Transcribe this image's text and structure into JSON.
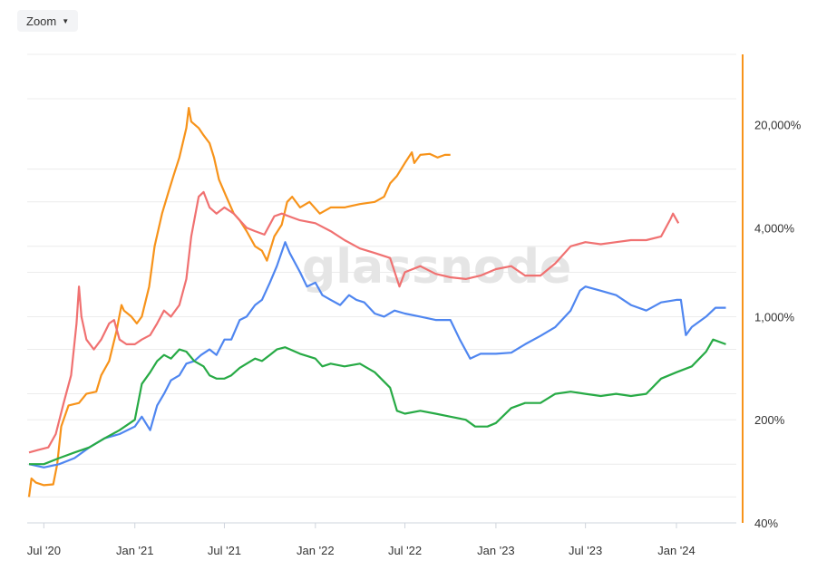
{
  "toolbar": {
    "zoom_label": "Zoom",
    "zoom_icon": "caret-down-icon"
  },
  "watermark": "glassnode",
  "colors": {
    "orange": "#f7931a",
    "red": "#f07171",
    "blue": "#4f86f0",
    "green": "#27aa45",
    "axis": "#f7931a",
    "grid": "#ececec"
  },
  "chart_data": {
    "type": "line",
    "y_scale": "log",
    "ylim": [
      40,
      60000
    ],
    "xlim": [
      "2020-06-01",
      "2024-05-01"
    ],
    "x_ticks": [
      {
        "label": "Jul '20",
        "date": "2020-07-01"
      },
      {
        "label": "Jan '21",
        "date": "2021-01-01"
      },
      {
        "label": "Jul '21",
        "date": "2021-07-01"
      },
      {
        "label": "Jan '22",
        "date": "2022-01-01"
      },
      {
        "label": "Jul '22",
        "date": "2022-07-01"
      },
      {
        "label": "Jan '23",
        "date": "2023-01-01"
      },
      {
        "label": "Jul '23",
        "date": "2023-07-01"
      },
      {
        "label": "Jan '24",
        "date": "2024-01-01"
      }
    ],
    "y_ticks": [
      {
        "label": "40%",
        "value": 40
      },
      {
        "label": "200%",
        "value": 200
      },
      {
        "label": "1,000%",
        "value": 1000
      },
      {
        "label": "4,000%",
        "value": 4000
      },
      {
        "label": "20,000%",
        "value": 20000
      }
    ],
    "grid_values": [
      60,
      100,
      200,
      300,
      600,
      1000,
      2000,
      3000,
      6000,
      10000,
      30000,
      60000
    ],
    "grid": true,
    "series": [
      {
        "color": "#f7931a",
        "points": [
          [
            "2020-06-01",
            60
          ],
          [
            "2020-06-06",
            80
          ],
          [
            "2020-06-15",
            75
          ],
          [
            "2020-07-01",
            72
          ],
          [
            "2020-07-20",
            73
          ],
          [
            "2020-07-28",
            100
          ],
          [
            "2020-08-05",
            180
          ],
          [
            "2020-08-20",
            250
          ],
          [
            "2020-09-10",
            260
          ],
          [
            "2020-09-25",
            300
          ],
          [
            "2020-10-15",
            310
          ],
          [
            "2020-10-25",
            400
          ],
          [
            "2020-11-10",
            500
          ],
          [
            "2020-11-25",
            800
          ],
          [
            "2020-12-05",
            1200
          ],
          [
            "2020-12-10",
            1100
          ],
          [
            "2020-12-25",
            1000
          ],
          [
            "2021-01-05",
            900
          ],
          [
            "2021-01-15",
            1000
          ],
          [
            "2021-01-30",
            1600
          ],
          [
            "2021-02-10",
            3000
          ],
          [
            "2021-02-25",
            5000
          ],
          [
            "2021-03-10",
            7000
          ],
          [
            "2021-03-20",
            9000
          ],
          [
            "2021-04-01",
            12000
          ],
          [
            "2021-04-15",
            19000
          ],
          [
            "2021-04-20",
            26000
          ],
          [
            "2021-04-25",
            21000
          ],
          [
            "2021-05-10",
            19000
          ],
          [
            "2021-05-20",
            17000
          ],
          [
            "2021-06-01",
            15000
          ],
          [
            "2021-06-10",
            12000
          ],
          [
            "2021-06-20",
            8500
          ],
          [
            "2021-07-05",
            6500
          ],
          [
            "2021-07-20",
            5000
          ],
          [
            "2021-08-01",
            4500
          ],
          [
            "2021-08-15",
            3800
          ],
          [
            "2021-09-01",
            3000
          ],
          [
            "2021-09-15",
            2800
          ],
          [
            "2021-09-25",
            2400
          ],
          [
            "2021-10-10",
            3500
          ],
          [
            "2021-10-25",
            4200
          ],
          [
            "2021-11-05",
            6000
          ],
          [
            "2021-11-15",
            6500
          ],
          [
            "2021-12-01",
            5500
          ],
          [
            "2021-12-20",
            6000
          ],
          [
            "2022-01-10",
            5000
          ],
          [
            "2022-02-01",
            5500
          ],
          [
            "2022-03-01",
            5500
          ],
          [
            "2022-04-01",
            5800
          ],
          [
            "2022-05-01",
            6000
          ],
          [
            "2022-05-20",
            6500
          ],
          [
            "2022-06-01",
            8000
          ],
          [
            "2022-06-15",
            9000
          ],
          [
            "2022-07-01",
            11000
          ],
          [
            "2022-07-15",
            13000
          ],
          [
            "2022-07-20",
            11000
          ],
          [
            "2022-08-01",
            12500
          ],
          [
            "2022-08-20",
            12700
          ],
          [
            "2022-09-05",
            12000
          ],
          [
            "2022-09-20",
            12500
          ],
          [
            "2022-10-01",
            12500
          ]
        ]
      },
      {
        "color": "#f07171",
        "points": [
          [
            "2020-06-01",
            120
          ],
          [
            "2020-06-20",
            125
          ],
          [
            "2020-07-10",
            130
          ],
          [
            "2020-07-25",
            160
          ],
          [
            "2020-08-10",
            260
          ],
          [
            "2020-08-25",
            400
          ],
          [
            "2020-09-05",
            900
          ],
          [
            "2020-09-10",
            1600
          ],
          [
            "2020-09-15",
            1000
          ],
          [
            "2020-09-25",
            700
          ],
          [
            "2020-10-10",
            600
          ],
          [
            "2020-10-25",
            700
          ],
          [
            "2020-11-10",
            900
          ],
          [
            "2020-11-20",
            950
          ],
          [
            "2020-12-01",
            700
          ],
          [
            "2020-12-15",
            650
          ],
          [
            "2021-01-01",
            650
          ],
          [
            "2021-01-15",
            700
          ],
          [
            "2021-02-01",
            750
          ],
          [
            "2021-02-15",
            900
          ],
          [
            "2021-03-01",
            1100
          ],
          [
            "2021-03-15",
            1000
          ],
          [
            "2021-04-01",
            1200
          ],
          [
            "2021-04-15",
            1800
          ],
          [
            "2021-04-25",
            3500
          ],
          [
            "2021-05-10",
            6500
          ],
          [
            "2021-05-20",
            7000
          ],
          [
            "2021-06-01",
            5500
          ],
          [
            "2021-06-15",
            5000
          ],
          [
            "2021-07-01",
            5500
          ],
          [
            "2021-07-20",
            5000
          ],
          [
            "2021-08-01",
            4500
          ],
          [
            "2021-08-15",
            4000
          ],
          [
            "2021-09-01",
            3800
          ],
          [
            "2021-09-20",
            3600
          ],
          [
            "2021-10-10",
            4800
          ],
          [
            "2021-10-25",
            5000
          ],
          [
            "2021-11-15",
            4700
          ],
          [
            "2021-12-01",
            4500
          ],
          [
            "2022-01-01",
            4300
          ],
          [
            "2022-02-01",
            3800
          ],
          [
            "2022-03-01",
            3300
          ],
          [
            "2022-04-01",
            2900
          ],
          [
            "2022-05-01",
            2700
          ],
          [
            "2022-06-01",
            2500
          ],
          [
            "2022-06-20",
            1600
          ],
          [
            "2022-07-01",
            2000
          ],
          [
            "2022-08-01",
            2200
          ],
          [
            "2022-09-01",
            1950
          ],
          [
            "2022-10-01",
            1850
          ],
          [
            "2022-11-01",
            1800
          ],
          [
            "2022-12-01",
            1900
          ],
          [
            "2023-01-01",
            2100
          ],
          [
            "2023-02-01",
            2200
          ],
          [
            "2023-03-01",
            1900
          ],
          [
            "2023-04-01",
            1900
          ],
          [
            "2023-05-01",
            2300
          ],
          [
            "2023-06-01",
            3000
          ],
          [
            "2023-07-01",
            3200
          ],
          [
            "2023-08-01",
            3100
          ],
          [
            "2023-09-01",
            3200
          ],
          [
            "2023-10-01",
            3300
          ],
          [
            "2023-11-01",
            3300
          ],
          [
            "2023-12-01",
            3500
          ],
          [
            "2023-12-20",
            4600
          ],
          [
            "2023-12-25",
            5000
          ],
          [
            "2024-01-05",
            4300
          ]
        ]
      },
      {
        "color": "#4f86f0",
        "points": [
          [
            "2020-06-01",
            100
          ],
          [
            "2020-07-01",
            95
          ],
          [
            "2020-08-01",
            100
          ],
          [
            "2020-09-01",
            110
          ],
          [
            "2020-10-01",
            130
          ],
          [
            "2020-11-01",
            150
          ],
          [
            "2020-12-01",
            160
          ],
          [
            "2021-01-01",
            180
          ],
          [
            "2021-01-15",
            210
          ],
          [
            "2021-02-01",
            170
          ],
          [
            "2021-02-15",
            250
          ],
          [
            "2021-03-01",
            300
          ],
          [
            "2021-03-15",
            370
          ],
          [
            "2021-04-01",
            400
          ],
          [
            "2021-04-15",
            480
          ],
          [
            "2021-05-01",
            500
          ],
          [
            "2021-05-15",
            550
          ],
          [
            "2021-06-01",
            600
          ],
          [
            "2021-06-15",
            550
          ],
          [
            "2021-07-01",
            700
          ],
          [
            "2021-07-15",
            700
          ],
          [
            "2021-08-01",
            950
          ],
          [
            "2021-08-15",
            1000
          ],
          [
            "2021-09-01",
            1200
          ],
          [
            "2021-09-15",
            1300
          ],
          [
            "2021-10-01",
            1700
          ],
          [
            "2021-10-15",
            2200
          ],
          [
            "2021-11-01",
            3200
          ],
          [
            "2021-11-10",
            2700
          ],
          [
            "2021-12-01",
            2000
          ],
          [
            "2021-12-15",
            1600
          ],
          [
            "2022-01-01",
            1700
          ],
          [
            "2022-01-15",
            1400
          ],
          [
            "2022-02-01",
            1300
          ],
          [
            "2022-02-20",
            1200
          ],
          [
            "2022-03-10",
            1400
          ],
          [
            "2022-03-25",
            1300
          ],
          [
            "2022-04-10",
            1250
          ],
          [
            "2022-05-01",
            1050
          ],
          [
            "2022-05-20",
            1000
          ],
          [
            "2022-06-10",
            1100
          ],
          [
            "2022-07-01",
            1050
          ],
          [
            "2022-08-01",
            1000
          ],
          [
            "2022-09-01",
            950
          ],
          [
            "2022-10-01",
            950
          ],
          [
            "2022-10-20",
            700
          ],
          [
            "2022-11-10",
            520
          ],
          [
            "2022-12-01",
            560
          ],
          [
            "2023-01-01",
            560
          ],
          [
            "2023-02-01",
            570
          ],
          [
            "2023-03-01",
            650
          ],
          [
            "2023-04-01",
            740
          ],
          [
            "2023-05-01",
            850
          ],
          [
            "2023-06-01",
            1100
          ],
          [
            "2023-06-20",
            1500
          ],
          [
            "2023-07-01",
            1600
          ],
          [
            "2023-08-01",
            1500
          ],
          [
            "2023-09-01",
            1400
          ],
          [
            "2023-10-01",
            1200
          ],
          [
            "2023-11-01",
            1100
          ],
          [
            "2023-12-01",
            1250
          ],
          [
            "2024-01-01",
            1300
          ],
          [
            "2024-01-10",
            1300
          ],
          [
            "2024-01-20",
            750
          ],
          [
            "2024-02-01",
            850
          ],
          [
            "2024-03-01",
            1000
          ],
          [
            "2024-03-20",
            1150
          ],
          [
            "2024-04-10",
            1150
          ]
        ]
      },
      {
        "color": "#27aa45",
        "points": [
          [
            "2020-06-01",
            100
          ],
          [
            "2020-07-01",
            100
          ],
          [
            "2020-08-01",
            110
          ],
          [
            "2020-09-01",
            120
          ],
          [
            "2020-10-01",
            130
          ],
          [
            "2020-11-01",
            150
          ],
          [
            "2020-12-01",
            170
          ],
          [
            "2021-01-01",
            200
          ],
          [
            "2021-01-15",
            350
          ],
          [
            "2021-02-01",
            420
          ],
          [
            "2021-02-15",
            500
          ],
          [
            "2021-03-01",
            550
          ],
          [
            "2021-03-15",
            520
          ],
          [
            "2021-04-01",
            600
          ],
          [
            "2021-04-15",
            580
          ],
          [
            "2021-05-01",
            500
          ],
          [
            "2021-05-20",
            460
          ],
          [
            "2021-06-01",
            400
          ],
          [
            "2021-06-15",
            380
          ],
          [
            "2021-07-01",
            380
          ],
          [
            "2021-07-15",
            400
          ],
          [
            "2021-08-01",
            450
          ],
          [
            "2021-08-15",
            480
          ],
          [
            "2021-09-01",
            520
          ],
          [
            "2021-09-15",
            500
          ],
          [
            "2021-10-01",
            550
          ],
          [
            "2021-10-15",
            600
          ],
          [
            "2021-11-01",
            620
          ],
          [
            "2021-12-01",
            560
          ],
          [
            "2022-01-01",
            520
          ],
          [
            "2022-01-15",
            460
          ],
          [
            "2022-02-01",
            480
          ],
          [
            "2022-03-01",
            460
          ],
          [
            "2022-04-01",
            480
          ],
          [
            "2022-05-01",
            420
          ],
          [
            "2022-06-01",
            330
          ],
          [
            "2022-06-15",
            230
          ],
          [
            "2022-07-01",
            220
          ],
          [
            "2022-08-01",
            230
          ],
          [
            "2022-09-01",
            220
          ],
          [
            "2022-10-01",
            210
          ],
          [
            "2022-11-01",
            200
          ],
          [
            "2022-11-20",
            180
          ],
          [
            "2022-12-15",
            180
          ],
          [
            "2023-01-01",
            190
          ],
          [
            "2023-02-01",
            240
          ],
          [
            "2023-03-01",
            260
          ],
          [
            "2023-04-01",
            260
          ],
          [
            "2023-05-01",
            300
          ],
          [
            "2023-06-01",
            310
          ],
          [
            "2023-07-01",
            300
          ],
          [
            "2023-08-01",
            290
          ],
          [
            "2023-09-01",
            300
          ],
          [
            "2023-10-01",
            290
          ],
          [
            "2023-11-01",
            300
          ],
          [
            "2023-12-01",
            380
          ],
          [
            "2024-01-01",
            420
          ],
          [
            "2024-02-01",
            460
          ],
          [
            "2024-03-01",
            580
          ],
          [
            "2024-03-15",
            700
          ],
          [
            "2024-04-10",
            650
          ]
        ]
      }
    ]
  }
}
